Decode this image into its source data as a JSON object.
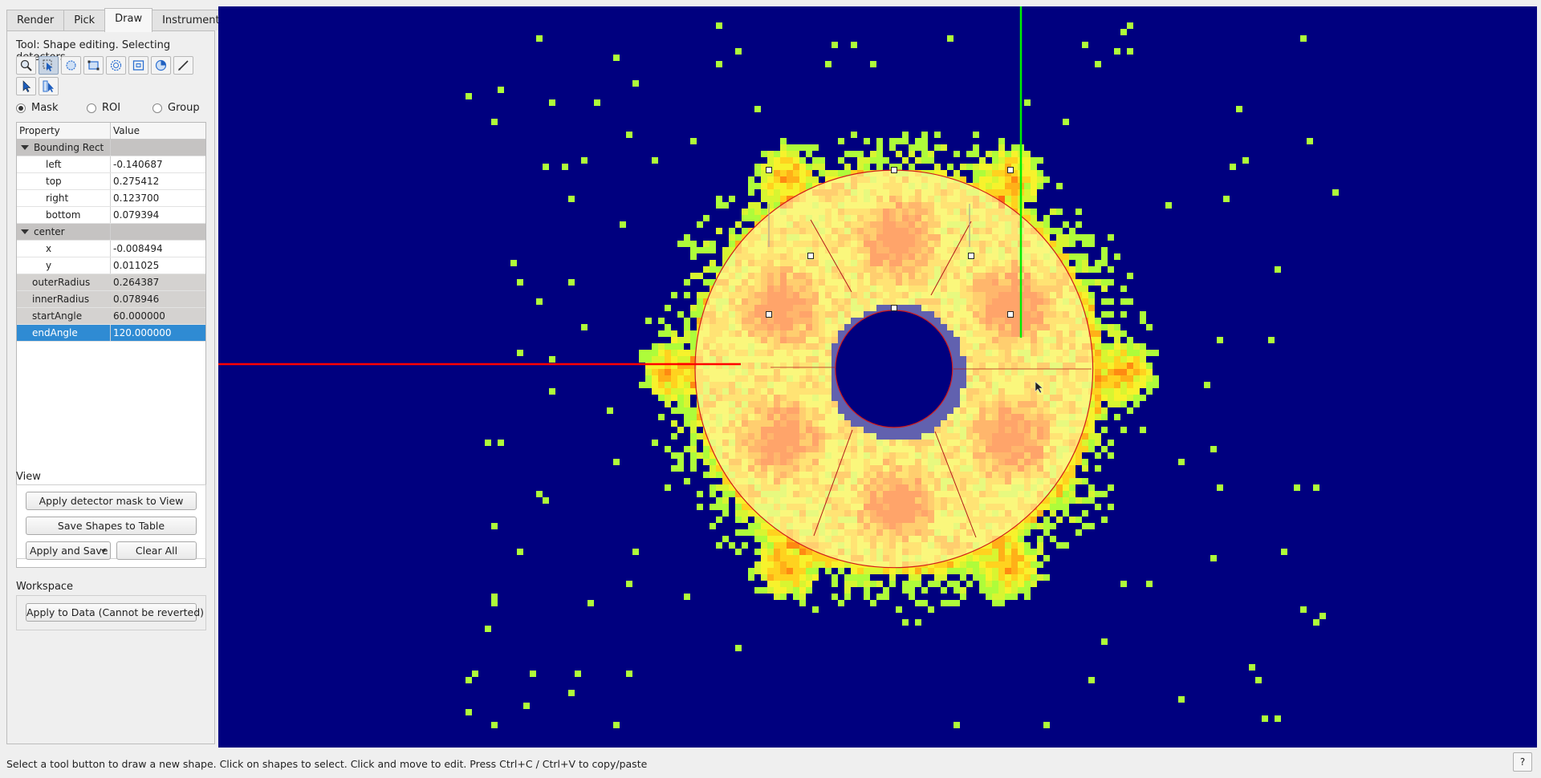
{
  "tabs": [
    {
      "label": "Render",
      "active": false
    },
    {
      "label": "Pick",
      "active": false
    },
    {
      "label": "Draw",
      "active": true
    },
    {
      "label": "Instrument",
      "active": false
    }
  ],
  "tool_label": "Tool: Shape editing. Selecting detectors",
  "toolbar_icons": [
    "zoom-icon",
    "edit-shape-icon",
    "ellipse-icon",
    "rectangle-icon",
    "ring-ellipse-icon",
    "ring-rectangle-icon",
    "sector-icon",
    "free-draw-icon",
    "select-icon",
    "select-tube-icon"
  ],
  "radio": {
    "mask": "Mask",
    "roi": "ROI",
    "group": "Group",
    "selected": "mask"
  },
  "property_table": {
    "header_property": "Property",
    "header_value": "Value",
    "rows": [
      {
        "label": "Bounding Rect",
        "value": "",
        "kind": "group"
      },
      {
        "label": "left",
        "value": "-0.140687",
        "kind": "child"
      },
      {
        "label": "top",
        "value": "0.275412",
        "kind": "child"
      },
      {
        "label": "right",
        "value": "0.123700",
        "kind": "child"
      },
      {
        "label": "bottom",
        "value": "0.079394",
        "kind": "child"
      },
      {
        "label": "center",
        "value": "",
        "kind": "group"
      },
      {
        "label": "x",
        "value": "-0.008494",
        "kind": "child"
      },
      {
        "label": "y",
        "value": "0.011025",
        "kind": "child"
      },
      {
        "label": "outerRadius",
        "value": "0.264387",
        "kind": "gray"
      },
      {
        "label": "innerRadius",
        "value": "0.078946",
        "kind": "gray"
      },
      {
        "label": "startAngle",
        "value": "60.000000",
        "kind": "gray"
      },
      {
        "label": "endAngle",
        "value": "120.000000",
        "kind": "selected"
      }
    ]
  },
  "view": {
    "title": "View",
    "apply_mask": "Apply detector mask to View",
    "save_shapes": "Save Shapes to Table",
    "apply_save": "Apply and Save",
    "clear_all": "Clear All"
  },
  "workspace": {
    "title": "Workspace",
    "apply_data": "Apply to Data (Cannot be reverted)"
  },
  "status_text": "Select a tool button to draw a new shape. Click on shapes to select. Click and move to edit. Press Ctrl+C / Ctrl+V to copy/paste",
  "help_label": "?",
  "colors": {
    "background": "#00007f",
    "cursor_horizontal": "#ff0000",
    "cursor_vertical": "#00ff00"
  }
}
